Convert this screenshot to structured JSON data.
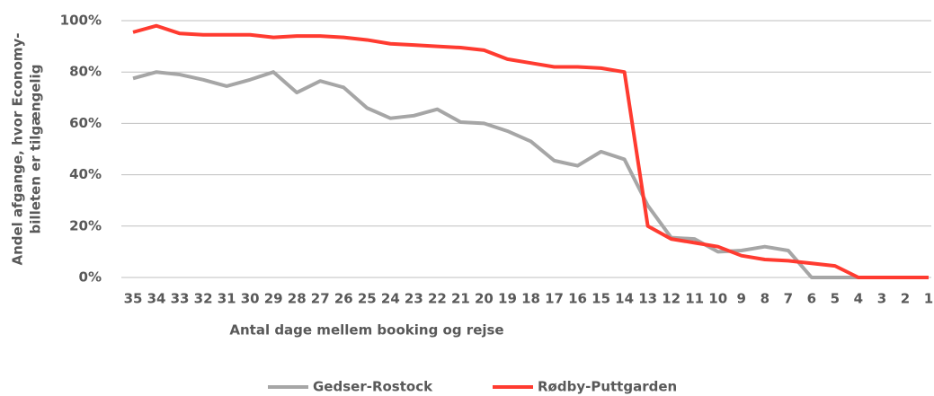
{
  "chart_data": {
    "type": "line",
    "xlabel": "Antal dage mellem booking og rejse",
    "ylabel": [
      "Andel afgange, hvor Economy-",
      "billeten er tilgængelig"
    ],
    "categories": [
      "35",
      "34",
      "33",
      "32",
      "31",
      "30",
      "29",
      "28",
      "27",
      "26",
      "25",
      "24",
      "23",
      "22",
      "21",
      "20",
      "19",
      "18",
      "17",
      "16",
      "15",
      "14",
      "13",
      "12",
      "11",
      "10",
      "9",
      "8",
      "7",
      "6",
      "5",
      "4",
      "3",
      "2",
      "1"
    ],
    "series": [
      {
        "name": "Gedser-Rostock",
        "color": "#a6a6a6",
        "values": [
          77.5,
          80,
          79,
          77,
          74.5,
          77,
          80,
          72,
          76.5,
          74,
          66,
          62,
          63,
          65.5,
          60.5,
          60,
          57,
          53,
          45.5,
          43.5,
          49,
          46,
          28,
          15.5,
          15,
          10,
          10.5,
          12,
          10.5,
          0,
          0,
          0,
          0,
          0,
          0
        ]
      },
      {
        "name": "Rødby-Puttgarden",
        "color": "#ff3b30",
        "values": [
          95.5,
          98,
          95,
          94.5,
          94.5,
          94.5,
          93.5,
          94,
          94,
          93.5,
          92.5,
          91,
          90.5,
          90,
          89.5,
          88.5,
          85,
          83.5,
          82,
          82,
          81.5,
          80,
          20,
          15,
          13.5,
          12,
          8.5,
          7,
          6.5,
          5.5,
          4.5,
          0,
          0,
          0,
          0
        ]
      }
    ],
    "ylim": [
      0,
      100
    ],
    "yticks": [
      {
        "value": 0,
        "label": "0%"
      },
      {
        "value": 20,
        "label": "20%"
      },
      {
        "value": 40,
        "label": "40%"
      },
      {
        "value": 60,
        "label": "60%"
      },
      {
        "value": 80,
        "label": "80%"
      },
      {
        "value": 100,
        "label": "100%"
      }
    ],
    "grid": true,
    "legend": "bottom"
  }
}
